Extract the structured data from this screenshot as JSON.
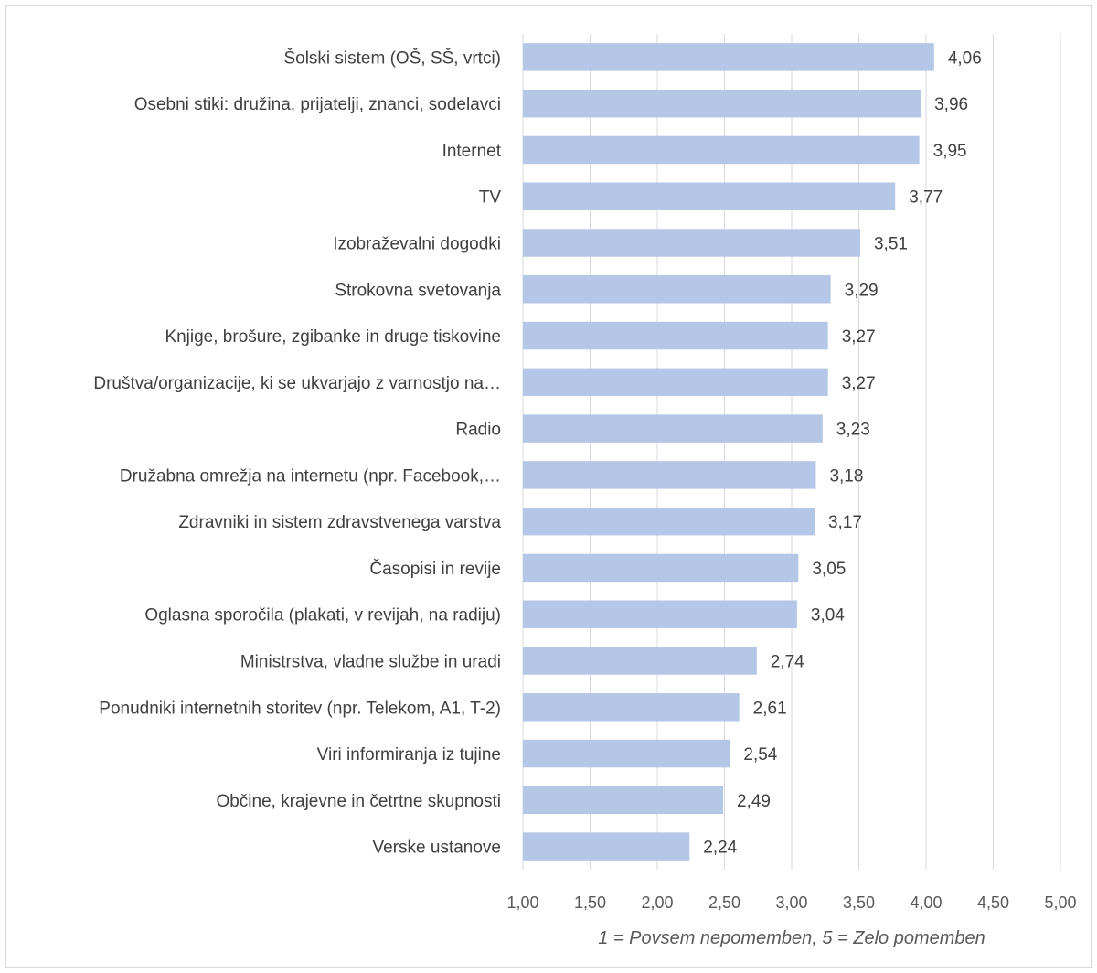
{
  "chart_data": {
    "type": "bar",
    "orientation": "horizontal",
    "categories": [
      "Šolski sistem (OŠ, SŠ, vrtci)",
      "Osebni stiki: družina, prijatelji, znanci, sodelavci",
      "Internet",
      "TV",
      "Izobraževalni dogodki",
      "Strokovna svetovanja",
      "Knjige, brošure, zgibanke in druge tiskovine",
      "Društva/organizacije, ki se ukvarjajo z varnostjo na…",
      "Radio",
      "Družabna omrežja na internetu (npr. Facebook,…",
      "Zdravniki in sistem zdravstvenega varstva",
      "Časopisi in revije",
      "Oglasna sporočila (plakati, v revijah, na radiju)",
      "Ministrstva, vladne službe in uradi",
      "Ponudniki internetnih storitev (npr. Telekom, A1, T-2)",
      "Viri informiranja iz tujine",
      "Občine, krajevne in četrtne skupnosti",
      "Verske ustanove"
    ],
    "values": [
      4.06,
      3.96,
      3.95,
      3.77,
      3.51,
      3.29,
      3.27,
      3.27,
      3.23,
      3.18,
      3.17,
      3.05,
      3.04,
      2.74,
      2.61,
      2.54,
      2.49,
      2.24
    ],
    "value_labels": [
      "4,06",
      "3,96",
      "3,95",
      "3,77",
      "3,51",
      "3,29",
      "3,27",
      "3,27",
      "3,23",
      "3,18",
      "3,17",
      "3,05",
      "3,04",
      "2,74",
      "2,61",
      "2,54",
      "2,49",
      "2,24"
    ],
    "xlim": [
      1,
      5
    ],
    "xticks": [
      1,
      1.5,
      2,
      2.5,
      3,
      3.5,
      4,
      4.5,
      5
    ],
    "xtick_labels": [
      "1,00",
      "1,50",
      "2,00",
      "2,50",
      "3,00",
      "3,50",
      "4,00",
      "4,50",
      "5,00"
    ],
    "xlabel": "1 = Povsem nepomemben, 5 = Zelo pomemben",
    "title": "",
    "grid": true,
    "bar_color": "#b4c7e7",
    "grid_color": "#d9d9d9"
  }
}
